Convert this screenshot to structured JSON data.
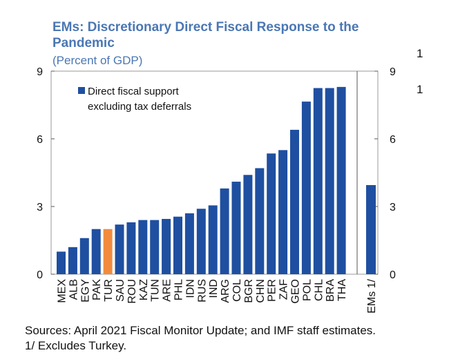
{
  "chart_data": {
    "type": "bar",
    "title": "EMs: Discretionary Direct Fiscal Response to the Pandemic",
    "subtitle": "(Percent of GDP)",
    "xlabel": "",
    "ylabel": "Percent of GDP",
    "ylim": [
      0,
      9
    ],
    "yticks": [
      0,
      3,
      6,
      9
    ],
    "categories": [
      "MEX",
      "ALB",
      "EGY",
      "PAK",
      "TUR",
      "SAU",
      "ROU",
      "KAZ",
      "TUN",
      "ARE",
      "PHL",
      "IDN",
      "RUS",
      "IND",
      "ARG",
      "COL",
      "BGR",
      "CHN",
      "PER",
      "ZAF",
      "GEO",
      "POL",
      "CHL",
      "BRA",
      "THA"
    ],
    "values": [
      1.0,
      1.2,
      1.6,
      2.0,
      2.0,
      2.2,
      2.3,
      2.4,
      2.4,
      2.45,
      2.55,
      2.7,
      2.9,
      3.05,
      3.8,
      4.1,
      4.4,
      4.7,
      5.35,
      5.5,
      6.4,
      7.65,
      8.25,
      8.25,
      8.3
    ],
    "highlight_category": "TUR",
    "aggregate": {
      "label": "EMs 1/",
      "value": 3.95
    },
    "series": [
      {
        "name": "Direct fiscal support excluding tax deferrals",
        "color": "#1f4fa0"
      }
    ],
    "highlight_color": "#f28c3c",
    "legend": {
      "position": "top-left",
      "line1": "Direct fiscal support",
      "line2": "excluding tax deferrals"
    },
    "grid": false
  },
  "edge_notes": [
    "1",
    "1"
  ],
  "footer": {
    "sources": "Sources: April 2021 Fiscal Monitor Update; and IMF staff estimates.",
    "note": "1/ Excludes Turkey."
  }
}
